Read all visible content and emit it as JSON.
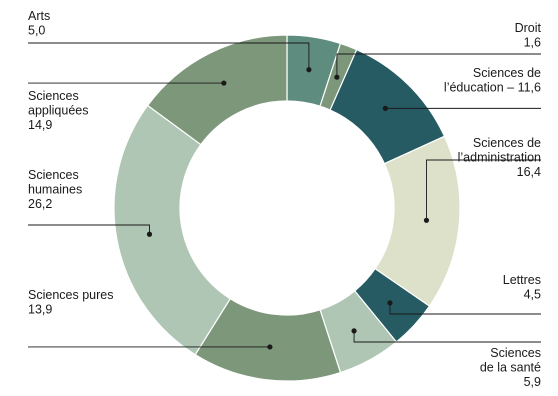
{
  "chart_data": {
    "type": "pie",
    "donut": true,
    "title": "",
    "slices": [
      {
        "name": "Arts",
        "value": 5.0,
        "value_label": "5,0",
        "color": "#5e8c7f",
        "label_lines": [
          "Arts",
          "5,0"
        ]
      },
      {
        "name": "Droit",
        "value": 1.6,
        "value_label": "1,6",
        "color": "#7d977a",
        "label_lines": [
          "Droit",
          "1,6"
        ]
      },
      {
        "name": "Sciences de l’éducation",
        "value": 11.6,
        "value_label": "11,6",
        "color": "#275b63",
        "label_lines": [
          "Sciences de",
          "l’éducation – 11,6"
        ]
      },
      {
        "name": "Sciences de l’administration",
        "value": 16.4,
        "value_label": "16,4",
        "color": "#dde1c9",
        "label_lines": [
          "Sciences de",
          "l’administration",
          "16,4"
        ]
      },
      {
        "name": "Lettres",
        "value": 4.5,
        "value_label": "4,5",
        "color": "#275b63",
        "label_lines": [
          "Lettres",
          "4,5"
        ]
      },
      {
        "name": "Sciences de la santé",
        "value": 5.9,
        "value_label": "5,9",
        "color": "#aec6b3",
        "label_lines": [
          "Sciences",
          "de la santé",
          "5,9"
        ]
      },
      {
        "name": "Sciences pures",
        "value": 13.9,
        "value_label": "13,9",
        "color": "#7d977a",
        "label_lines": [
          "Sciences pures",
          "13,9"
        ]
      },
      {
        "name": "Sciences humaines",
        "value": 26.2,
        "value_label": "26,2",
        "color": "#aec6b3",
        "label_lines": [
          "Sciences",
          "humaines",
          "26,2"
        ]
      },
      {
        "name": "Sciences appliquées",
        "value": 14.9,
        "value_label": "14,9",
        "color": "#7d977a",
        "label_lines": [
          "Sciences",
          "appliquées",
          "14,9"
        ]
      }
    ]
  }
}
